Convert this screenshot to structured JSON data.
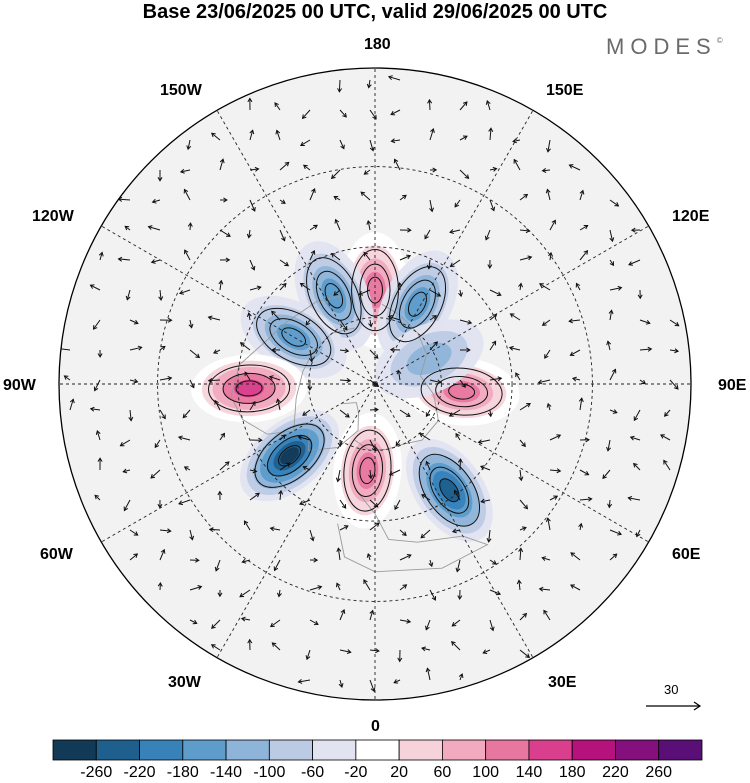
{
  "title": "Base 23/06/2025 00 UTC, valid 29/06/2025 00 UTC",
  "brand": "MODES",
  "brand_mark": "©",
  "longitude_labels": {
    "top": "180",
    "top_left": "150W",
    "top_right": "150E",
    "upper_left": "120W",
    "upper_right": "120E",
    "left": "90W",
    "right": "90E",
    "lower_left": "60W",
    "lower_right": "60E",
    "bottom_left": "30W",
    "bottom_right": "30E",
    "bottom": "0"
  },
  "reference_vector": "30",
  "colorbar": {
    "labels": [
      "-260",
      "-220",
      "-180",
      "-140",
      "-100",
      "-60",
      "-20",
      "20",
      "60",
      "100",
      "140",
      "180",
      "220",
      "260"
    ],
    "colors": [
      "#123a57",
      "#1e5f8e",
      "#3682b9",
      "#5d9ccb",
      "#8fb4d9",
      "#bccbe4",
      "#e1e3f0",
      "#ffffff",
      "#f6d3da",
      "#f1aabf",
      "#e8779f",
      "#d93f8c",
      "#b5127e",
      "#84107d",
      "#5a0f77"
    ]
  },
  "chart_data": {
    "type": "heatmap",
    "projection": "north polar stereographic",
    "meridians_deg": [
      0,
      30,
      60,
      90,
      120,
      150,
      180,
      210,
      240,
      270,
      300,
      330
    ],
    "anomalies": [
      {
        "name": "positive-north-pacific",
        "lon": 180,
        "lat": 62,
        "value": 150
      },
      {
        "name": "negative-bering",
        "lon": 152,
        "lat": 63,
        "value": -160
      },
      {
        "name": "negative-west-pacific",
        "lon": 205,
        "lat": 61,
        "value": -140
      },
      {
        "name": "negative-canada",
        "lon": 240,
        "lat": 62,
        "value": -160
      },
      {
        "name": "positive-hudson",
        "lon": 272,
        "lat": 53,
        "value": 180
      },
      {
        "name": "negative-north-atlantic",
        "lon": 310,
        "lat": 57,
        "value": -260
      },
      {
        "name": "positive-north-europe",
        "lon": 355,
        "lat": 64,
        "value": 160
      },
      {
        "name": "negative-eastern-europe",
        "lon": 35,
        "lat": 52,
        "value": -220
      },
      {
        "name": "positive-siberia",
        "lon": 85,
        "lat": 64,
        "value": 140
      },
      {
        "name": "negative-east-siberia",
        "lon": 115,
        "lat": 72,
        "value": -120
      }
    ]
  }
}
